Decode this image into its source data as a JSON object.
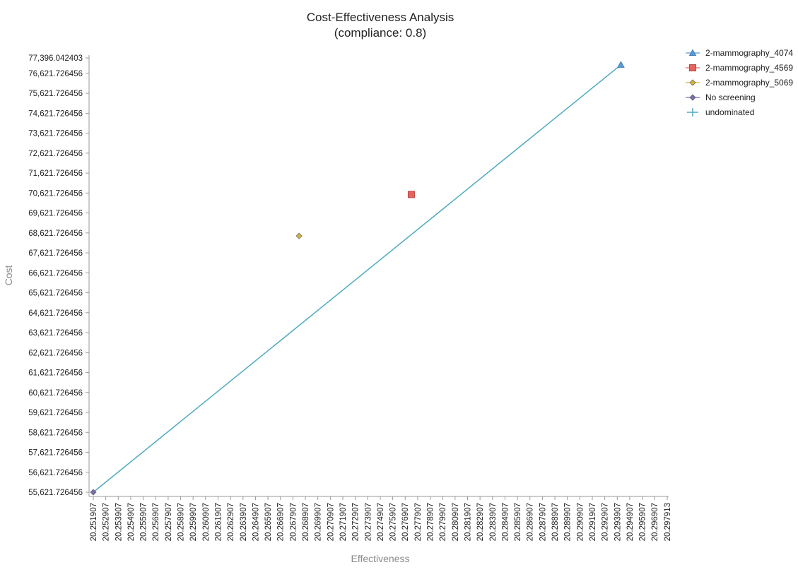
{
  "chart_data": {
    "type": "scatter",
    "title": "Cost-Effectiveness Analysis",
    "subtitle": "(compliance: 0.8)",
    "xlabel": "Effectiveness",
    "ylabel": "Cost",
    "xlim": [
      20.251907,
      20.297913
    ],
    "ylim": [
      55621.726456,
      77396.042403
    ],
    "x_ticks": [
      "20.251907",
      "20.252907",
      "20.253907",
      "20.254907",
      "20.255907",
      "20.256907",
      "20.257907",
      "20.258907",
      "20.259907",
      "20.260907",
      "20.261907",
      "20.262907",
      "20.263907",
      "20.264907",
      "20.265907",
      "20.266907",
      "20.267907",
      "20.268907",
      "20.269907",
      "20.270907",
      "20.271907",
      "20.272907",
      "20.273907",
      "20.274907",
      "20.275907",
      "20.276907",
      "20.277907",
      "20.278907",
      "20.279907",
      "20.280907",
      "20.281907",
      "20.282907",
      "20.283907",
      "20.284907",
      "20.285907",
      "20.286907",
      "20.287907",
      "20.288907",
      "20.289907",
      "20.290907",
      "20.291907",
      "20.292907",
      "20.293907",
      "20.294907",
      "20.295907",
      "20.296907",
      "20.297913"
    ],
    "y_ticks": [
      "55,621.726456",
      "56,621.726456",
      "57,621.726456",
      "58,621.726456",
      "59,621.726456",
      "60,621.726456",
      "61,621.726456",
      "62,621.726456",
      "63,621.726456",
      "64,621.726456",
      "65,621.726456",
      "66,621.726456",
      "67,621.726456",
      "68,621.726456",
      "69,621.726456",
      "70,621.726456",
      "71,621.726456",
      "72,621.726456",
      "73,621.726456",
      "74,621.726456",
      "75,621.726456",
      "76,621.726456",
      "77,396.042403"
    ],
    "grid": false,
    "legend_position": "top-right",
    "series": [
      {
        "name": "2-mammography_4074",
        "marker": "triangle",
        "color": "#5b9bd5",
        "points": [
          {
            "x": 20.2942,
            "y": 77050
          }
        ]
      },
      {
        "name": "2-mammography_4569",
        "marker": "square",
        "color": "#e8635f",
        "points": [
          {
            "x": 20.2774,
            "y": 70550
          }
        ]
      },
      {
        "name": "2-mammography_5069",
        "marker": "diamond",
        "color": "#d9b43a",
        "points": [
          {
            "x": 20.2684,
            "y": 68470
          }
        ]
      },
      {
        "name": "No screening",
        "marker": "diamond",
        "color": "#7b6bb8",
        "points": [
          {
            "x": 20.251907,
            "y": 55621.726456
          }
        ]
      },
      {
        "name": "undominated",
        "marker": "line",
        "color": "#4eaac1",
        "points": [
          {
            "x": 20.251907,
            "y": 55621.726456
          },
          {
            "x": 20.2942,
            "y": 77050
          }
        ]
      }
    ]
  }
}
